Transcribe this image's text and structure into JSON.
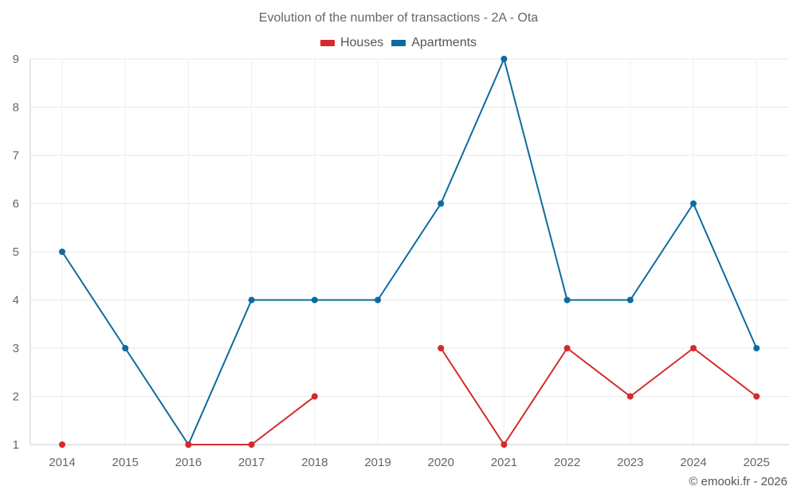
{
  "chart_data": {
    "type": "line",
    "title": "Evolution of the number of transactions - 2A - Ota",
    "xlabel": "",
    "ylabel": "",
    "categories": [
      "2014",
      "2015",
      "2016",
      "2017",
      "2018",
      "2019",
      "2020",
      "2021",
      "2022",
      "2023",
      "2024",
      "2025"
    ],
    "ylim": [
      1,
      9
    ],
    "yticks": [
      1,
      2,
      3,
      4,
      5,
      6,
      7,
      8,
      9
    ],
    "grid": true,
    "legend_position": "top-center",
    "series": [
      {
        "name": "Houses",
        "color": "#d42a2a",
        "values": [
          1,
          null,
          1,
          1,
          2,
          null,
          3,
          1,
          3,
          2,
          3,
          2
        ]
      },
      {
        "name": "Apartments",
        "color": "#0e6aa0",
        "values": [
          5,
          3,
          1,
          4,
          4,
          4,
          6,
          9,
          4,
          4,
          6,
          3
        ]
      }
    ]
  },
  "footer": {
    "credit": "© emooki.fr - 2026"
  }
}
